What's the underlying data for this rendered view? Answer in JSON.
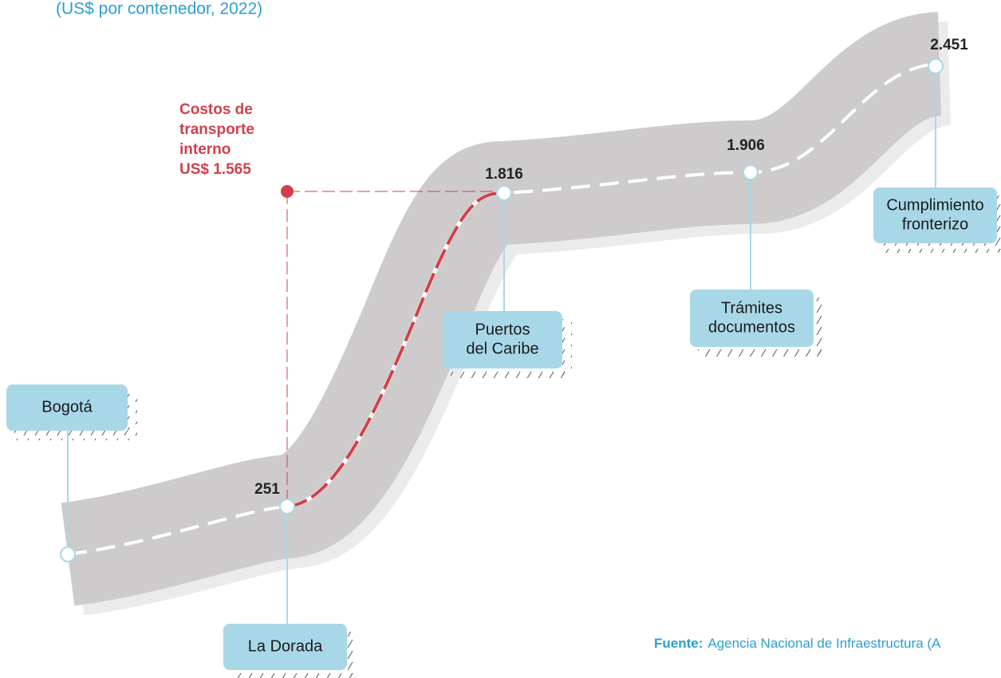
{
  "subtitle": "(US$ por contenedor, 2022)",
  "annotation": {
    "lines": [
      "Costos de",
      "transporte",
      "interno",
      "US$ 1.565"
    ]
  },
  "nodes": [
    {
      "label": [
        "Bogotá"
      ]
    },
    {
      "label": [
        "La Dorada"
      ],
      "value": "251"
    },
    {
      "label": [
        "Puertos",
        "del Caribe"
      ],
      "value": "1.816"
    },
    {
      "label": [
        "Trámites",
        "documentos"
      ],
      "value": "1.906"
    },
    {
      "label": [
        "Cumplimiento",
        "fronterizo"
      ],
      "value": "2.451"
    }
  ],
  "source": {
    "prefix": "Fuente:",
    "text": "Agencia Nacional de Infraestructura (A"
  }
}
